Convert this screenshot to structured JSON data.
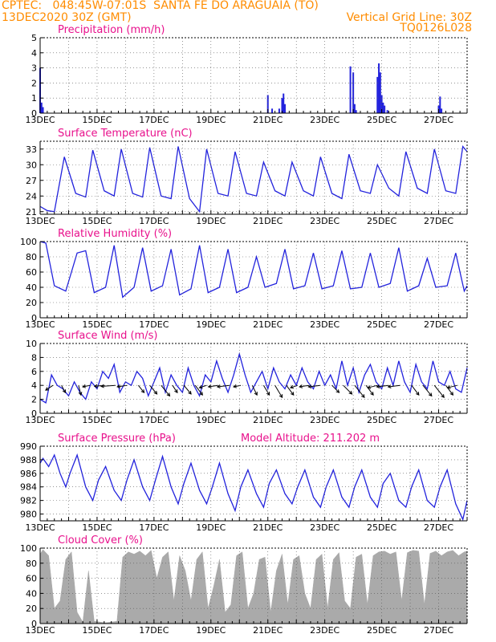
{
  "header": {
    "line1": "CPTEC:   048:45W-07:01S  SANTA FE DO ARAGUAIA (TO)",
    "line2": "13DEC2020 30Z (GMT)",
    "grid": "Vertical Grid Line: 30Z",
    "code": "TQ0126L028",
    "altitude": "Model Altitude: 211.202 m"
  },
  "colors": {
    "header": "#ff8c00",
    "title": "#e8118c",
    "line": "#2222dd",
    "cloud": "#aaaaaa",
    "wind": "#000000"
  },
  "chart_data": [
    {
      "type": "bar",
      "title": "Precipitation (mm/h)",
      "ylim": [
        0,
        5
      ],
      "yticks": [
        0,
        1,
        2,
        3,
        4,
        5
      ],
      "xticks": [
        "13DEC",
        "15DEC",
        "17DEC",
        "19DEC",
        "21DEC",
        "23DEC",
        "25DEC",
        "27DEC"
      ],
      "x_days": [
        0.0,
        0.05,
        0.1,
        8.0,
        8.15,
        8.4,
        8.5,
        8.55,
        8.6,
        10.9,
        11.0,
        11.05,
        11.1,
        11.85,
        11.9,
        11.95,
        12.0,
        12.05,
        12.1,
        12.2,
        14.0,
        14.05,
        14.1
      ],
      "values": [
        3.0,
        0.7,
        0.4,
        1.2,
        0.3,
        0.3,
        1.0,
        1.3,
        0.6,
        3.1,
        2.7,
        0.6,
        0.2,
        2.4,
        3.3,
        2.7,
        1.2,
        0.7,
        0.5,
        0.2,
        0.5,
        1.1,
        0.3
      ]
    },
    {
      "type": "line",
      "title": "Surface Temperature (nC)",
      "ylim": [
        20.5,
        34.5
      ],
      "yticks": [
        21,
        24,
        27,
        30,
        33
      ],
      "xticks": [
        "13DEC",
        "15DEC",
        "17DEC",
        "19DEC",
        "21DEC",
        "23DEC",
        "25DEC",
        "27DEC"
      ],
      "x_days": [
        0.0,
        0.25,
        0.5,
        0.85,
        1.25,
        1.6,
        1.85,
        2.25,
        2.6,
        2.85,
        3.25,
        3.6,
        3.85,
        4.25,
        4.6,
        4.85,
        5.25,
        5.6,
        5.85,
        6.25,
        6.6,
        6.85,
        7.25,
        7.6,
        7.85,
        8.25,
        8.6,
        8.85,
        9.25,
        9.6,
        9.85,
        10.25,
        10.6,
        10.85,
        11.25,
        11.6,
        11.85,
        12.25,
        12.6,
        12.85,
        13.25,
        13.6,
        13.85,
        14.25,
        14.6,
        14.85,
        15.0
      ],
      "values": [
        22.0,
        21.2,
        21.0,
        31.5,
        24.5,
        23.8,
        32.8,
        25.0,
        24.0,
        33.0,
        24.5,
        23.8,
        33.3,
        24.0,
        23.5,
        33.5,
        23.5,
        21.0,
        33.0,
        24.5,
        24.0,
        32.5,
        24.5,
        24.0,
        30.5,
        25.0,
        24.0,
        30.5,
        25.0,
        24.0,
        31.5,
        24.5,
        23.5,
        32.0,
        25.0,
        24.5,
        30.0,
        25.5,
        24.0,
        32.5,
        25.5,
        24.5,
        33.0,
        25.0,
        24.5,
        33.5,
        32.5
      ]
    },
    {
      "type": "line",
      "title": "Relative Humidity (%)",
      "ylim": [
        0,
        100
      ],
      "yticks": [
        0,
        20,
        40,
        60,
        80,
        100
      ],
      "xticks": [
        "13DEC",
        "15DEC",
        "17DEC",
        "19DEC",
        "21DEC",
        "23DEC",
        "25DEC",
        "27DEC"
      ],
      "x_days": [
        0.0,
        0.2,
        0.5,
        0.9,
        1.3,
        1.6,
        1.9,
        2.3,
        2.6,
        2.9,
        3.3,
        3.6,
        3.9,
        4.3,
        4.6,
        4.9,
        5.3,
        5.6,
        5.9,
        6.3,
        6.6,
        6.9,
        7.3,
        7.6,
        7.9,
        8.3,
        8.6,
        8.9,
        9.3,
        9.6,
        9.9,
        10.3,
        10.6,
        10.9,
        11.3,
        11.6,
        11.9,
        12.3,
        12.6,
        12.9,
        13.3,
        13.6,
        13.9,
        14.3,
        14.6,
        14.9,
        15.0
      ],
      "values": [
        100.0,
        98.0,
        42.0,
        35.0,
        85.0,
        88.0,
        33.0,
        40.0,
        95.0,
        27.0,
        40.0,
        92.0,
        35.0,
        42.0,
        90.0,
        30.0,
        38.0,
        95.0,
        33.0,
        40.0,
        90.0,
        33.0,
        40.0,
        80.0,
        40.0,
        45.0,
        90.0,
        38.0,
        42.0,
        85.0,
        38.0,
        42.0,
        88.0,
        38.0,
        40.0,
        85.0,
        40.0,
        45.0,
        92.0,
        35.0,
        42.0,
        78.0,
        40.0,
        42.0,
        85.0,
        35.0,
        42.0
      ]
    },
    {
      "type": "line",
      "title": "Surface Wind (m/s)",
      "ylim": [
        0,
        10
      ],
      "yticks": [
        0,
        2,
        4,
        6,
        8,
        10
      ],
      "xticks": [
        "13DEC",
        "15DEC",
        "17DEC",
        "19DEC",
        "21DEC",
        "23DEC",
        "25DEC",
        "27DEC"
      ],
      "x_days": [
        0.0,
        0.2,
        0.4,
        0.6,
        0.8,
        1.0,
        1.2,
        1.4,
        1.6,
        1.8,
        2.0,
        2.2,
        2.4,
        2.6,
        2.8,
        3.0,
        3.2,
        3.4,
        3.6,
        3.8,
        4.0,
        4.2,
        4.4,
        4.6,
        4.8,
        5.0,
        5.2,
        5.4,
        5.6,
        5.8,
        6.0,
        6.2,
        6.4,
        6.6,
        6.8,
        7.0,
        7.2,
        7.4,
        7.6,
        7.8,
        8.0,
        8.2,
        8.4,
        8.6,
        8.8,
        9.0,
        9.2,
        9.4,
        9.6,
        9.8,
        10.0,
        10.2,
        10.4,
        10.6,
        10.8,
        11.0,
        11.2,
        11.4,
        11.6,
        11.8,
        12.0,
        12.2,
        12.4,
        12.6,
        12.8,
        13.0,
        13.2,
        13.4,
        13.6,
        13.8,
        14.0,
        14.2,
        14.4,
        14.6,
        14.8,
        15.0
      ],
      "values": [
        2.0,
        1.5,
        5.5,
        4.0,
        3.5,
        2.5,
        4.5,
        3.0,
        2.0,
        4.5,
        3.5,
        6.0,
        5.0,
        7.0,
        3.0,
        4.5,
        4.0,
        6.0,
        5.0,
        2.5,
        4.5,
        6.5,
        3.0,
        5.5,
        4.0,
        3.0,
        6.5,
        4.0,
        2.5,
        5.5,
        4.5,
        7.5,
        5.0,
        3.0,
        5.5,
        8.5,
        5.5,
        3.0,
        4.5,
        6.0,
        3.5,
        6.5,
        4.5,
        3.5,
        5.5,
        4.0,
        6.5,
        4.5,
        3.5,
        6.0,
        4.0,
        5.5,
        3.5,
        7.5,
        4.0,
        6.5,
        3.0,
        5.5,
        7.0,
        4.5,
        3.5,
        6.5,
        4.0,
        7.5,
        4.5,
        3.0,
        7.0,
        4.5,
        3.5,
        7.5,
        4.5,
        4.0,
        6.0,
        3.5,
        3.0,
        6.5
      ],
      "arrow_x_days": [
        0.45,
        0.75,
        1.35,
        1.75,
        2.25,
        2.65,
        3.05,
        3.45,
        3.85,
        4.25,
        4.65,
        5.05,
        5.45,
        5.85,
        6.25,
        6.65,
        7.05,
        7.45,
        7.85,
        8.25,
        8.65,
        9.05,
        9.45,
        9.85,
        10.25,
        10.65,
        11.05,
        11.45,
        11.85,
        12.25,
        12.65,
        13.05,
        13.45,
        13.85,
        14.25,
        14.65
      ],
      "arrow_u": [
        -1.5,
        0.8,
        0.5,
        -1.5,
        -2.0,
        -3.0,
        -2.0,
        1.2,
        1.5,
        1.8,
        1.0,
        1.5,
        1.5,
        -1.5,
        -2.0,
        -2.5,
        -1.5,
        1.0,
        1.2,
        1.5,
        1.5,
        -1.5,
        -2.0,
        -2.5,
        1.5,
        1.8,
        2.0,
        1.5,
        -2.0,
        -2.5,
        -2.5,
        1.5,
        1.8,
        2.0,
        1.5,
        -2.0
      ],
      "arrow_v": [
        -1.0,
        -1.5,
        -2.0,
        -0.3,
        -0.2,
        -0.2,
        -0.3,
        -1.5,
        -1.8,
        -2.2,
        -1.5,
        -1.8,
        -2.0,
        -0.5,
        -0.3,
        -0.3,
        -0.3,
        -2.0,
        -2.0,
        -2.5,
        -2.0,
        -0.5,
        -0.3,
        -0.3,
        -1.5,
        -1.8,
        -2.5,
        -2.0,
        -0.5,
        -0.3,
        -0.3,
        -2.0,
        -2.2,
        -2.5,
        -2.0,
        -0.5
      ]
    },
    {
      "type": "line",
      "title": "Surface Pressure (hPa)",
      "ylim": [
        979,
        990
      ],
      "yticks": [
        980,
        982,
        984,
        986,
        988,
        990
      ],
      "xticks": [
        "13DEC",
        "15DEC",
        "17DEC",
        "19DEC",
        "21DEC",
        "23DEC",
        "25DEC",
        "27DEC"
      ],
      "x_days": [
        0.0,
        0.1,
        0.3,
        0.5,
        0.7,
        0.9,
        1.05,
        1.3,
        1.6,
        1.85,
        2.05,
        2.3,
        2.6,
        2.85,
        3.05,
        3.3,
        3.6,
        3.85,
        4.05,
        4.3,
        4.6,
        4.85,
        5.05,
        5.3,
        5.6,
        5.85,
        6.05,
        6.3,
        6.6,
        6.85,
        7.05,
        7.3,
        7.6,
        7.85,
        8.05,
        8.3,
        8.6,
        8.85,
        9.05,
        9.3,
        9.6,
        9.85,
        10.05,
        10.3,
        10.6,
        10.85,
        11.05,
        11.3,
        11.6,
        11.85,
        12.05,
        12.3,
        12.6,
        12.85,
        13.05,
        13.3,
        13.6,
        13.85,
        14.05,
        14.3,
        14.6,
        14.85,
        15.0
      ],
      "values": [
        987.5,
        988.2,
        987.0,
        988.7,
        986.0,
        984.0,
        986.0,
        988.7,
        984.0,
        982.0,
        985.0,
        987.0,
        983.5,
        982.0,
        985.0,
        988.0,
        984.0,
        982.0,
        985.0,
        988.5,
        984.0,
        981.5,
        984.5,
        987.5,
        983.5,
        981.5,
        984.0,
        987.5,
        983.0,
        980.5,
        984.0,
        986.5,
        983.0,
        981.0,
        984.5,
        986.5,
        983.0,
        981.5,
        984.0,
        986.5,
        982.5,
        981.0,
        984.0,
        986.5,
        982.5,
        981.0,
        984.0,
        986.5,
        982.5,
        981.0,
        984.5,
        986.0,
        982.0,
        981.0,
        984.0,
        986.5,
        982.0,
        981.0,
        984.0,
        986.5,
        981.5,
        979.2,
        982.0
      ]
    },
    {
      "type": "area",
      "title": "Cloud Cover (%)",
      "ylim": [
        0,
        100
      ],
      "yticks": [
        0,
        20,
        40,
        60,
        80,
        100
      ],
      "xticks": [
        "13DEC",
        "15DEC",
        "17DEC",
        "19DEC",
        "21DEC",
        "23DEC",
        "25DEC",
        "27DEC"
      ],
      "x_days": [
        0.0,
        0.1,
        0.3,
        0.5,
        0.7,
        0.9,
        1.1,
        1.3,
        1.5,
        1.7,
        1.9,
        2.1,
        2.3,
        2.5,
        2.7,
        2.9,
        3.1,
        3.3,
        3.5,
        3.7,
        3.9,
        4.1,
        4.3,
        4.5,
        4.7,
        4.9,
        5.1,
        5.3,
        5.5,
        5.7,
        5.9,
        6.1,
        6.3,
        6.5,
        6.7,
        6.9,
        7.1,
        7.3,
        7.5,
        7.7,
        7.9,
        8.1,
        8.3,
        8.5,
        8.7,
        8.9,
        9.1,
        9.3,
        9.5,
        9.7,
        9.9,
        10.1,
        10.3,
        10.5,
        10.7,
        10.9,
        11.1,
        11.3,
        11.5,
        11.7,
        11.9,
        12.1,
        12.3,
        12.5,
        12.7,
        12.9,
        13.1,
        13.3,
        13.5,
        13.7,
        13.9,
        14.1,
        14.3,
        14.5,
        14.7,
        14.9,
        15.0
      ],
      "values": [
        92.0,
        98.0,
        90.0,
        20.0,
        30.0,
        85.0,
        95.0,
        15.0,
        2.0,
        70.0,
        3.0,
        2.0,
        1.0,
        2.0,
        3.0,
        88.0,
        95.0,
        92.0,
        96.0,
        90.0,
        97.0,
        60.0,
        88.0,
        95.0,
        30.0,
        90.0,
        70.0,
        30.0,
        85.0,
        95.0,
        20.0,
        50.0,
        85.0,
        15.0,
        25.0,
        90.0,
        95.0,
        20.0,
        40.0,
        85.0,
        88.0,
        15.0,
        70.0,
        92.0,
        25.0,
        85.0,
        90.0,
        40.0,
        20.0,
        85.0,
        92.0,
        20.0,
        85.0,
        94.0,
        30.0,
        20.0,
        88.0,
        92.0,
        25.0,
        90.0,
        95.0,
        96.0,
        92.0,
        95.0,
        30.0,
        94.0,
        97.0,
        96.0,
        25.0,
        93.0,
        96.0,
        90.0,
        95.0,
        97.0,
        90.0,
        95.0,
        96.0
      ]
    }
  ]
}
